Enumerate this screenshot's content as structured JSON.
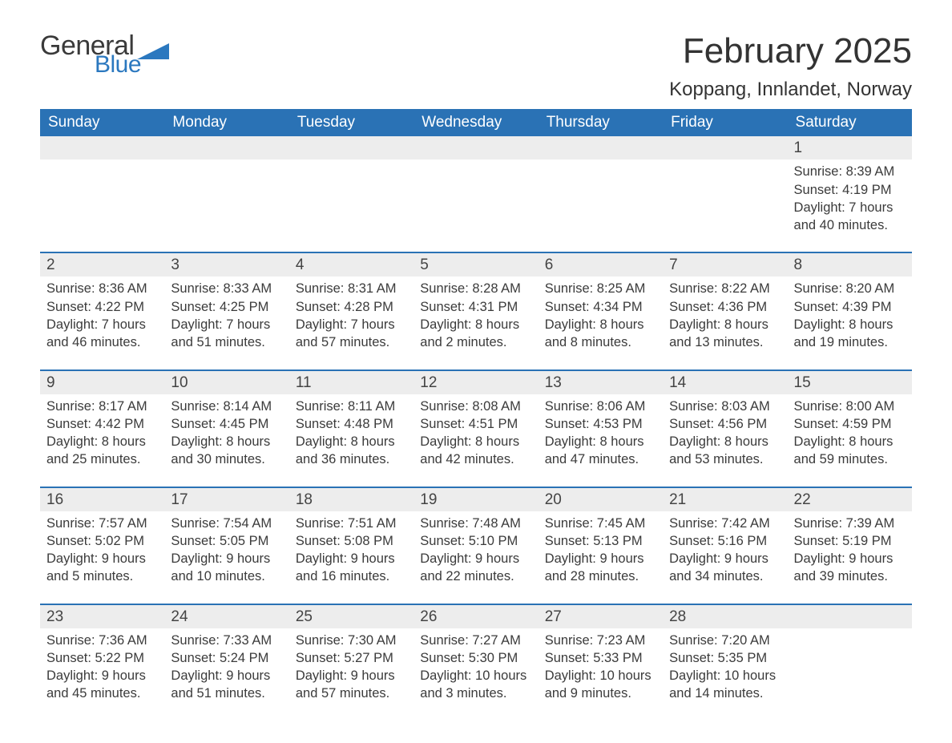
{
  "logo": {
    "word1": "General",
    "word2": "Blue",
    "word1_color": "#3a3a3a",
    "word2_color": "#2b78bf",
    "flag_color": "#2b78bf"
  },
  "header": {
    "month_title": "February 2025",
    "location": "Koppang, Innlandet, Norway",
    "title_fontsize": 44,
    "location_fontsize": 24
  },
  "colors": {
    "header_bg": "#2a72b5",
    "header_text": "#ffffff",
    "daynum_bg": "#ededed",
    "rule": "#2a72b5",
    "body_text": "#3b3b3b",
    "page_bg": "#ffffff"
  },
  "calendar": {
    "type": "table",
    "weekdays": [
      "Sunday",
      "Monday",
      "Tuesday",
      "Wednesday",
      "Thursday",
      "Friday",
      "Saturday"
    ],
    "weeks": [
      [
        null,
        null,
        null,
        null,
        null,
        null,
        {
          "n": "1",
          "sunrise": "8:39 AM",
          "sunset": "4:19 PM",
          "daylight": "7 hours and 40 minutes."
        }
      ],
      [
        {
          "n": "2",
          "sunrise": "8:36 AM",
          "sunset": "4:22 PM",
          "daylight": "7 hours and 46 minutes."
        },
        {
          "n": "3",
          "sunrise": "8:33 AM",
          "sunset": "4:25 PM",
          "daylight": "7 hours and 51 minutes."
        },
        {
          "n": "4",
          "sunrise": "8:31 AM",
          "sunset": "4:28 PM",
          "daylight": "7 hours and 57 minutes."
        },
        {
          "n": "5",
          "sunrise": "8:28 AM",
          "sunset": "4:31 PM",
          "daylight": "8 hours and 2 minutes."
        },
        {
          "n": "6",
          "sunrise": "8:25 AM",
          "sunset": "4:34 PM",
          "daylight": "8 hours and 8 minutes."
        },
        {
          "n": "7",
          "sunrise": "8:22 AM",
          "sunset": "4:36 PM",
          "daylight": "8 hours and 13 minutes."
        },
        {
          "n": "8",
          "sunrise": "8:20 AM",
          "sunset": "4:39 PM",
          "daylight": "8 hours and 19 minutes."
        }
      ],
      [
        {
          "n": "9",
          "sunrise": "8:17 AM",
          "sunset": "4:42 PM",
          "daylight": "8 hours and 25 minutes."
        },
        {
          "n": "10",
          "sunrise": "8:14 AM",
          "sunset": "4:45 PM",
          "daylight": "8 hours and 30 minutes."
        },
        {
          "n": "11",
          "sunrise": "8:11 AM",
          "sunset": "4:48 PM",
          "daylight": "8 hours and 36 minutes."
        },
        {
          "n": "12",
          "sunrise": "8:08 AM",
          "sunset": "4:51 PM",
          "daylight": "8 hours and 42 minutes."
        },
        {
          "n": "13",
          "sunrise": "8:06 AM",
          "sunset": "4:53 PM",
          "daylight": "8 hours and 47 minutes."
        },
        {
          "n": "14",
          "sunrise": "8:03 AM",
          "sunset": "4:56 PM",
          "daylight": "8 hours and 53 minutes."
        },
        {
          "n": "15",
          "sunrise": "8:00 AM",
          "sunset": "4:59 PM",
          "daylight": "8 hours and 59 minutes."
        }
      ],
      [
        {
          "n": "16",
          "sunrise": "7:57 AM",
          "sunset": "5:02 PM",
          "daylight": "9 hours and 5 minutes."
        },
        {
          "n": "17",
          "sunrise": "7:54 AM",
          "sunset": "5:05 PM",
          "daylight": "9 hours and 10 minutes."
        },
        {
          "n": "18",
          "sunrise": "7:51 AM",
          "sunset": "5:08 PM",
          "daylight": "9 hours and 16 minutes."
        },
        {
          "n": "19",
          "sunrise": "7:48 AM",
          "sunset": "5:10 PM",
          "daylight": "9 hours and 22 minutes."
        },
        {
          "n": "20",
          "sunrise": "7:45 AM",
          "sunset": "5:13 PM",
          "daylight": "9 hours and 28 minutes."
        },
        {
          "n": "21",
          "sunrise": "7:42 AM",
          "sunset": "5:16 PM",
          "daylight": "9 hours and 34 minutes."
        },
        {
          "n": "22",
          "sunrise": "7:39 AM",
          "sunset": "5:19 PM",
          "daylight": "9 hours and 39 minutes."
        }
      ],
      [
        {
          "n": "23",
          "sunrise": "7:36 AM",
          "sunset": "5:22 PM",
          "daylight": "9 hours and 45 minutes."
        },
        {
          "n": "24",
          "sunrise": "7:33 AM",
          "sunset": "5:24 PM",
          "daylight": "9 hours and 51 minutes."
        },
        {
          "n": "25",
          "sunrise": "7:30 AM",
          "sunset": "5:27 PM",
          "daylight": "9 hours and 57 minutes."
        },
        {
          "n": "26",
          "sunrise": "7:27 AM",
          "sunset": "5:30 PM",
          "daylight": "10 hours and 3 minutes."
        },
        {
          "n": "27",
          "sunrise": "7:23 AM",
          "sunset": "5:33 PM",
          "daylight": "10 hours and 9 minutes."
        },
        {
          "n": "28",
          "sunrise": "7:20 AM",
          "sunset": "5:35 PM",
          "daylight": "10 hours and 14 minutes."
        },
        null
      ]
    ],
    "labels": {
      "sunrise_prefix": "Sunrise: ",
      "sunset_prefix": "Sunset: ",
      "daylight_prefix": "Daylight: "
    }
  }
}
